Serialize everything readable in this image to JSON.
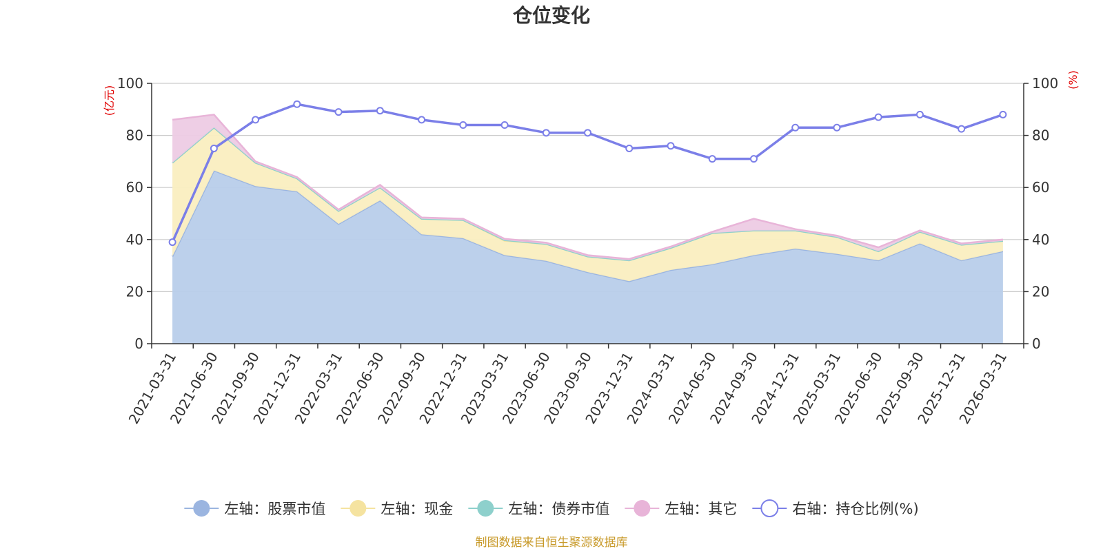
{
  "chart_data": {
    "type": "area",
    "title": "仓位变化",
    "left_axis_unit": "(亿元)",
    "right_axis_unit": "(%)",
    "ylim_left": [
      0,
      100
    ],
    "ylim_right": [
      0,
      100
    ],
    "y_ticks": [
      0,
      20,
      40,
      60,
      80,
      100
    ],
    "categories": [
      "2021-03-31",
      "2021-06-30",
      "2021-09-30",
      "2021-12-31",
      "2022-03-31",
      "2022-06-30",
      "2022-09-30",
      "2022-12-31",
      "2023-03-31",
      "2023-06-30",
      "2023-09-30",
      "2023-12-31",
      "2024-03-31",
      "2024-06-30",
      "2024-09-30",
      "2024-12-31",
      "2025-03-31",
      "2025-06-30",
      "2025-09-30",
      "2025-12-31",
      "2026-03-31"
    ],
    "series": [
      {
        "name": "左轴：股票市值",
        "axis": "left",
        "kind": "area",
        "color": "#9bb5e0",
        "fill": "#b8cdea",
        "values": [
          33.5,
          66.5,
          60.5,
          58.5,
          46,
          55,
          42,
          40.5,
          34,
          31.8,
          27.5,
          24,
          28.3,
          30.5,
          34,
          36.5,
          34.5,
          32,
          38.5,
          32,
          35.5
        ]
      },
      {
        "name": "左轴：现金",
        "axis": "left",
        "kind": "area",
        "color": "#f5e3a0",
        "fill": "#faeec0",
        "values": [
          36,
          16.5,
          9,
          5,
          5,
          5,
          6,
          7,
          5.5,
          6.5,
          6,
          8,
          8.5,
          12,
          9.5,
          7,
          6.5,
          3.5,
          4.5,
          6,
          4
        ]
      },
      {
        "name": "左轴：债券市值",
        "axis": "left",
        "kind": "area",
        "color": "#8ed0cc",
        "fill": "#b9e3e0",
        "values": [
          0,
          0,
          0,
          0,
          0,
          0,
          0,
          0,
          0.3,
          0,
          0,
          0,
          0,
          0,
          0,
          0,
          0,
          0,
          0,
          0,
          0
        ]
      },
      {
        "name": "左轴：其它",
        "axis": "left",
        "kind": "area",
        "color": "#e8b4d8",
        "fill": "#edcbe4",
        "values": [
          16.5,
          5,
          0.5,
          0.5,
          0.5,
          1,
          0.5,
          0.5,
          0.5,
          0.5,
          0.5,
          0.5,
          0.5,
          0.5,
          4.5,
          0.5,
          0.5,
          1.5,
          0.5,
          0.5,
          0.5
        ]
      },
      {
        "name": "右轴：持仓比例(%)",
        "axis": "right",
        "kind": "line",
        "color": "#7b7fe8",
        "values": [
          39,
          75,
          86,
          92,
          89,
          89.5,
          86,
          84,
          84,
          81,
          81,
          75,
          76,
          71,
          71,
          83,
          83,
          87,
          88,
          82.5,
          88
        ]
      }
    ]
  },
  "footer": {
    "source_text": "制图数据来自恒生聚源数据库",
    "source_color": "#c89a2a"
  },
  "colors": {
    "axis_unit": "#e00000",
    "title": "#333333"
  }
}
